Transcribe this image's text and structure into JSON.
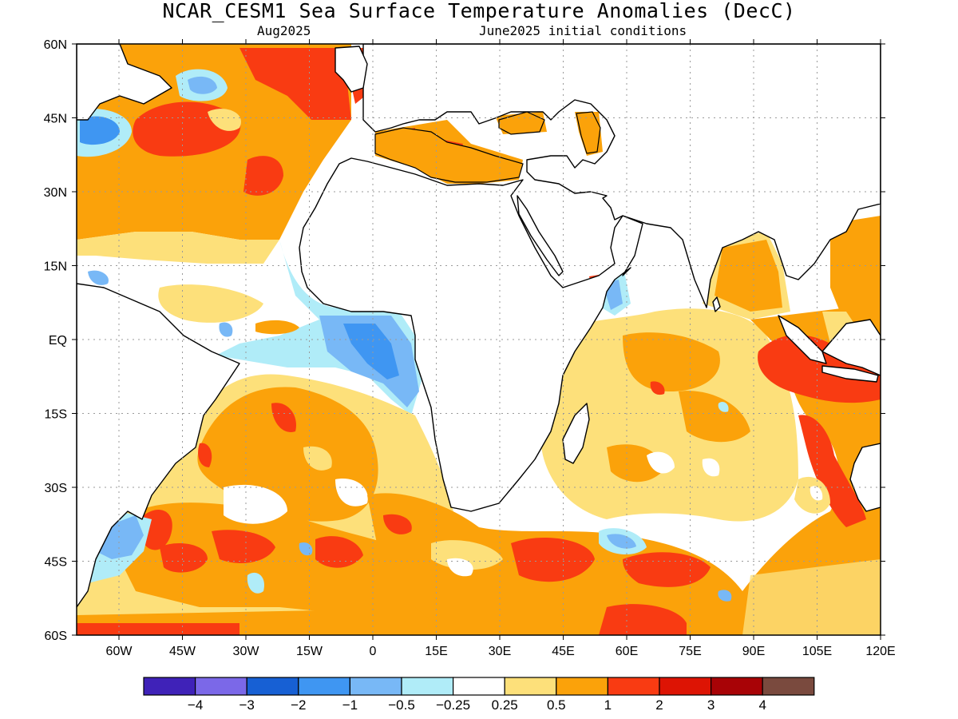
{
  "title": "NCAR_CESM1 Sea Surface Temperature Anomalies (DecC)",
  "subtitle_left": "Aug2025",
  "subtitle_right": "June2025 initial conditions",
  "map": {
    "lon_range": [
      -70,
      120
    ],
    "lat_range": [
      -60,
      60
    ],
    "x_ticks": [
      {
        "lon": -60,
        "label": "60W"
      },
      {
        "lon": -45,
        "label": "45W"
      },
      {
        "lon": -30,
        "label": "30W"
      },
      {
        "lon": -15,
        "label": "15W"
      },
      {
        "lon": 0,
        "label": "0"
      },
      {
        "lon": 15,
        "label": "15E"
      },
      {
        "lon": 30,
        "label": "30E"
      },
      {
        "lon": 45,
        "label": "45E"
      },
      {
        "lon": 60,
        "label": "60E"
      },
      {
        "lon": 75,
        "label": "75E"
      },
      {
        "lon": 90,
        "label": "90E"
      },
      {
        "lon": 105,
        "label": "105E"
      },
      {
        "lon": 120,
        "label": "120E"
      }
    ],
    "y_ticks": [
      {
        "lat": 60,
        "label": "60N"
      },
      {
        "lat": 45,
        "label": "45N"
      },
      {
        "lat": 30,
        "label": "30N"
      },
      {
        "lat": 15,
        "label": "15N"
      },
      {
        "lat": 0,
        "label": "EQ"
      },
      {
        "lat": -15,
        "label": "15S"
      },
      {
        "lat": -30,
        "label": "30S"
      },
      {
        "lat": -45,
        "label": "45S"
      },
      {
        "lat": -60,
        "label": "60S"
      }
    ],
    "gridlines": "dotted"
  },
  "colorbar": {
    "colors": [
      "#3f22b8",
      "#7b68e8",
      "#1760d4",
      "#3f96f2",
      "#78b8f6",
      "#b0ecf8",
      "#ffffff",
      "#fde07a",
      "#fba20a",
      "#f93b12",
      "#dd1404",
      "#a80306",
      "#7a4a3e"
    ],
    "labels": [
      "−4",
      "−3",
      "−2",
      "−1",
      "−0.5",
      "−0.25",
      "0.25",
      "0.5",
      "1",
      "2",
      "3",
      "4"
    ]
  }
}
